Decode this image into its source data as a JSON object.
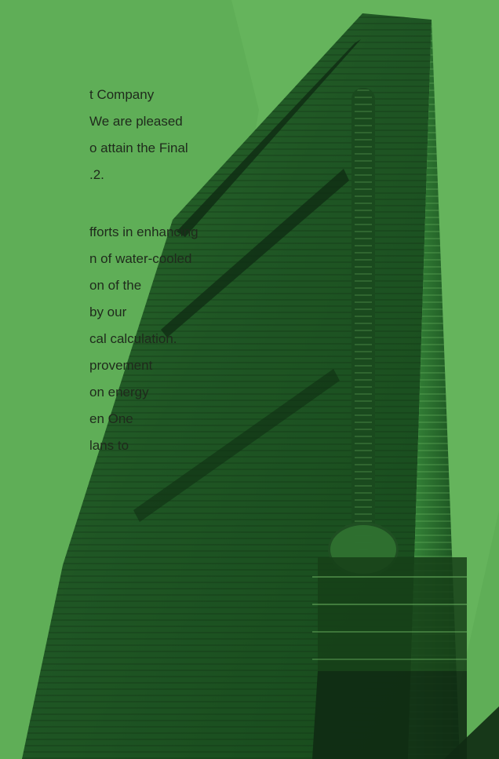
{
  "paragraph_1": {
    "lines": [
      "t Company",
      "We are pleased",
      "o attain the Final",
      ".2."
    ]
  },
  "paragraph_2": {
    "lines": [
      "fforts in enhancing",
      "n of water-cooled",
      "on of the",
      " by our",
      "cal calculation.",
      "provement",
      "on energy",
      "en One",
      "lans to"
    ]
  },
  "colors": {
    "background": "#5fae57",
    "text": "#1f2a1c",
    "building_dark": "#133d17",
    "building_mid": "#2d6f2e",
    "building_light": "#7bc76e"
  },
  "icons": {
    "building": "skyscraper-illustration"
  }
}
